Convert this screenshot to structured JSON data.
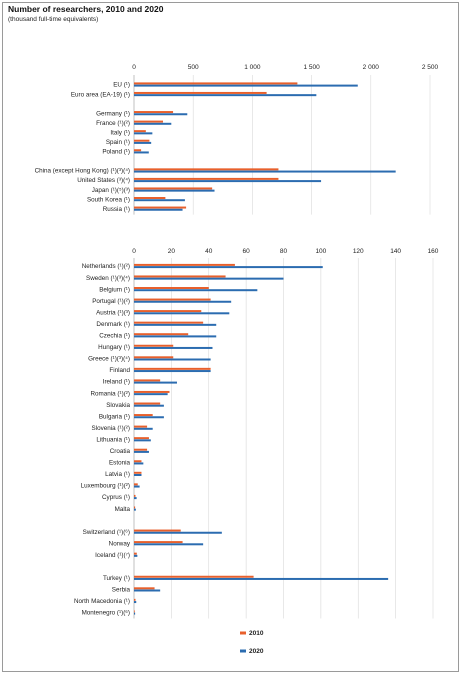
{
  "title": "Number of researchers, 2010 and 2020",
  "subtitle": "(thousand full-time equivalents)",
  "chart_data": [
    {
      "type": "bar",
      "orientation": "horizontal",
      "xlim": [
        0,
        2500
      ],
      "ticks": [
        "0",
        "500",
        "1 000",
        "1 500",
        "2 000",
        "2 500"
      ],
      "grid": true,
      "categories": [
        "EU (¹)",
        "Euro area (EA-19) (¹)",
        "",
        "Germany (¹)",
        "France (¹)(²)",
        "Italy (¹)",
        "Spain (¹)",
        "Poland (¹)",
        "",
        "China  (except Hong Kong) (¹)(³)(⁴)",
        "United States (³)(⁴)",
        "Japan (¹)(⁵)(³)",
        "South Korea (¹)",
        "Russia (¹)"
      ],
      "series": [
        {
          "name": "2010",
          "values": [
            1380,
            1120,
            null,
            330,
            245,
            100,
            130,
            60,
            null,
            1220,
            1220,
            660,
            265,
            440
          ]
        },
        {
          "name": "2020",
          "values": [
            1890,
            1540,
            null,
            450,
            315,
            155,
            145,
            125,
            null,
            2210,
            1580,
            680,
            430,
            410
          ]
        }
      ]
    },
    {
      "type": "bar",
      "orientation": "horizontal",
      "xlim": [
        0,
        160
      ],
      "ticks": [
        "0",
        "20",
        "40",
        "60",
        "80",
        "100",
        "120",
        "140",
        "160"
      ],
      "grid": true,
      "categories": [
        "Netherlands (¹)(²)",
        "Sweden (¹)(³)(⁴)",
        "Belgium (¹)",
        "Portugal (¹)(²)",
        "Austria (¹)(³)",
        "Denmark (¹)",
        "Czechia (¹)",
        "Hungary (¹)",
        "Greece (¹)(³)(⁴)",
        "Finland",
        "Ireland (¹)",
        "Romania (¹)(²)",
        "Slovakia",
        "Bulgaria (¹)",
        "Slovenia (¹)(²)",
        "Lithuania (¹)",
        "Croatia",
        "Estonia",
        "Latvia (¹)",
        "Luxembourg (¹)(²)",
        "Cyprus (¹)",
        "Malta",
        "",
        "Switzerland (¹)(⁶)",
        "Norway",
        "Iceland (¹)(⁷)",
        "",
        "Turkey (¹)",
        "Serbia",
        "North Macedonia (¹)",
        "Montenegro (¹)(⁶)"
      ],
      "series": [
        {
          "name": "2010",
          "values": [
            54,
            49,
            40,
            41,
            36,
            37,
            29,
            21,
            21,
            41,
            14,
            19,
            14,
            10,
            7,
            8,
            7,
            4,
            4,
            2,
            0.8,
            0.6,
            null,
            25,
            26,
            1.5,
            null,
            64,
            11,
            0.8,
            0.4
          ]
        },
        {
          "name": "2020",
          "values": [
            101,
            80,
            66,
            52,
            51,
            44,
            44,
            42,
            41,
            41,
            23,
            18,
            16,
            16,
            10,
            9,
            8,
            5,
            4,
            3,
            1.4,
            1,
            null,
            47,
            37,
            1.8,
            null,
            136,
            14,
            1.2,
            0.6
          ]
        }
      ],
      "legend": {
        "position": "bottom",
        "entries": [
          "2010",
          "2020"
        ]
      }
    }
  ],
  "colors": {
    "2010": "#e8602c",
    "2020": "#2b6cb0",
    "grid": "#d9d9d9"
  }
}
